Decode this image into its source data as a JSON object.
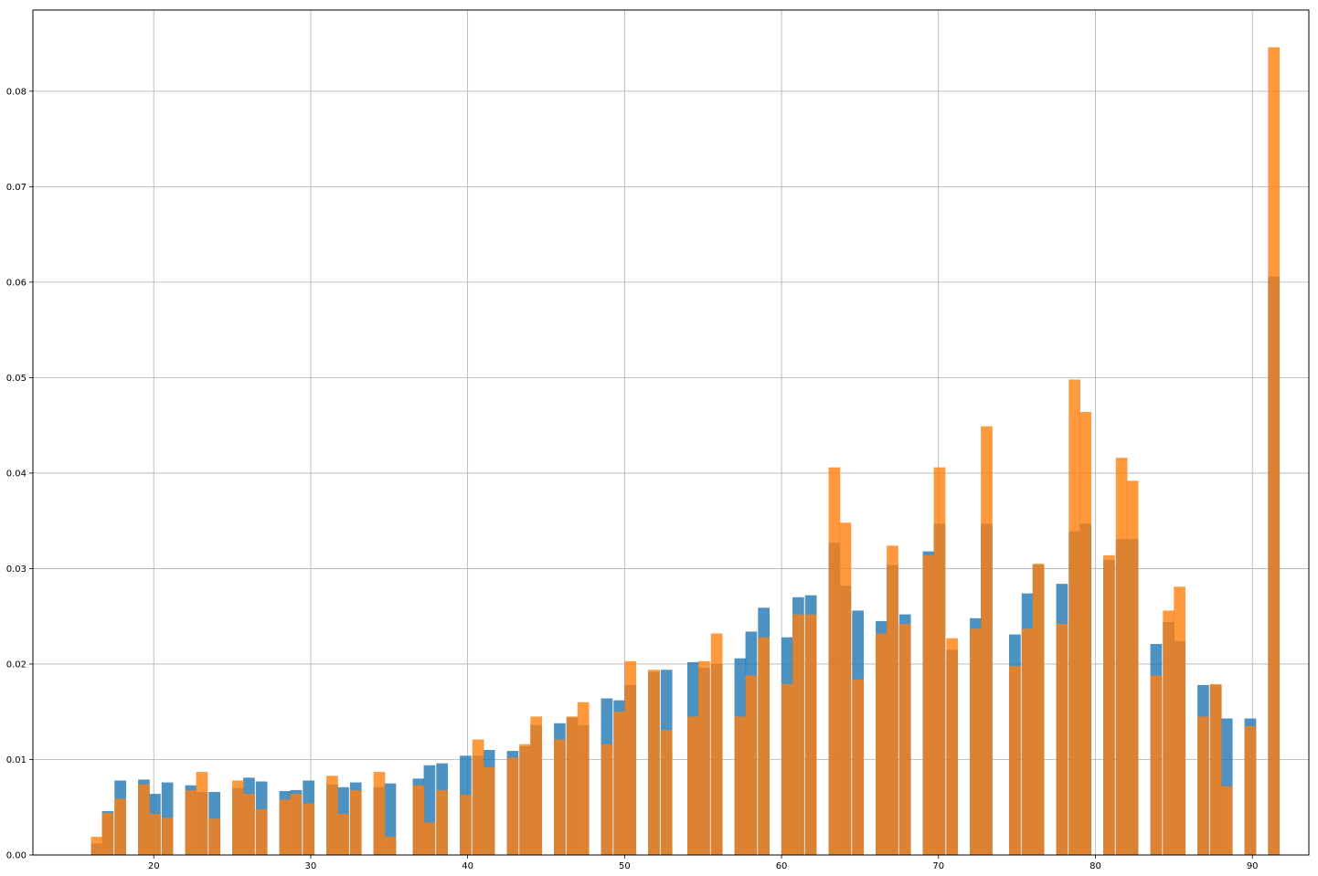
{
  "chart_data": {
    "type": "bar",
    "title": "",
    "xlabel": "",
    "ylabel": "",
    "xlim": [
      12.3,
      93.6
    ],
    "ylim": [
      0,
      0.0885
    ],
    "grid": true,
    "bin_width": 0.74,
    "xticks": [
      20,
      30,
      40,
      50,
      60,
      70,
      80,
      90
    ],
    "yticks": [
      0.0,
      0.01,
      0.02,
      0.03,
      0.04,
      0.05,
      0.06,
      0.07,
      0.08
    ],
    "xtick_labels": [
      "20",
      "30",
      "40",
      "50",
      "60",
      "70",
      "80",
      "90"
    ],
    "ytick_labels": [
      "0.00",
      "0.01",
      "0.02",
      "0.03",
      "0.04",
      "0.05",
      "0.06",
      "0.07",
      "0.08"
    ],
    "series": [
      {
        "color": "#1f77b4",
        "bins": [
          [
            16.0,
            0.0012
          ],
          [
            16.7,
            0.0046
          ],
          [
            17.5,
            0.0078
          ],
          [
            19.0,
            0.0079
          ],
          [
            19.7,
            0.0064
          ],
          [
            20.5,
            0.0076
          ],
          [
            22.0,
            0.0073
          ],
          [
            22.7,
            0.0066
          ],
          [
            23.5,
            0.0066
          ],
          [
            25.0,
            0.007
          ],
          [
            25.7,
            0.0081
          ],
          [
            26.5,
            0.0077
          ],
          [
            28.0,
            0.0067
          ],
          [
            28.7,
            0.0068
          ],
          [
            29.5,
            0.0078
          ],
          [
            31.0,
            0.0074
          ],
          [
            31.7,
            0.0071
          ],
          [
            32.5,
            0.0076
          ],
          [
            34.0,
            0.0071
          ],
          [
            34.7,
            0.0075
          ],
          [
            36.5,
            0.008
          ],
          [
            37.2,
            0.0094
          ],
          [
            38.0,
            0.0096
          ],
          [
            39.5,
            0.0104
          ],
          [
            40.3,
            0.0104
          ],
          [
            41.0,
            0.011
          ],
          [
            42.5,
            0.0109
          ],
          [
            43.3,
            0.0114
          ],
          [
            44.0,
            0.0136
          ],
          [
            45.5,
            0.0138
          ],
          [
            46.3,
            0.0144
          ],
          [
            47.0,
            0.0136
          ],
          [
            48.5,
            0.0164
          ],
          [
            49.3,
            0.0162
          ],
          [
            50.0,
            0.0178
          ],
          [
            51.5,
            0.0192
          ],
          [
            52.3,
            0.0194
          ],
          [
            54.0,
            0.0202
          ],
          [
            54.7,
            0.0196
          ],
          [
            55.5,
            0.02
          ],
          [
            57.0,
            0.0206
          ],
          [
            57.7,
            0.0234
          ],
          [
            58.5,
            0.0259
          ],
          [
            60.0,
            0.0228
          ],
          [
            60.7,
            0.027
          ],
          [
            61.5,
            0.0272
          ],
          [
            63.0,
            0.0327
          ],
          [
            63.7,
            0.0282
          ],
          [
            64.5,
            0.0256
          ],
          [
            66.0,
            0.0245
          ],
          [
            66.7,
            0.0304
          ],
          [
            67.5,
            0.0252
          ],
          [
            69.0,
            0.0318
          ],
          [
            69.7,
            0.0347
          ],
          [
            70.5,
            0.0215
          ],
          [
            72.0,
            0.0248
          ],
          [
            72.7,
            0.0347
          ],
          [
            74.5,
            0.0231
          ],
          [
            75.3,
            0.0274
          ],
          [
            76.0,
            0.0304
          ],
          [
            77.5,
            0.0284
          ],
          [
            78.3,
            0.0339
          ],
          [
            79.0,
            0.0347
          ],
          [
            80.5,
            0.0309
          ],
          [
            81.3,
            0.0331
          ],
          [
            82.0,
            0.0331
          ],
          [
            83.5,
            0.0221
          ],
          [
            84.3,
            0.0244
          ],
          [
            85.0,
            0.0224
          ],
          [
            86.5,
            0.0178
          ],
          [
            87.3,
            0.0178
          ],
          [
            88.0,
            0.0143
          ],
          [
            89.5,
            0.0143
          ],
          [
            91.0,
            0.0606
          ]
        ]
      },
      {
        "color": "#ff7f0e",
        "bins": [
          [
            16.0,
            0.0019
          ],
          [
            16.7,
            0.0044
          ],
          [
            17.5,
            0.0059
          ],
          [
            19.0,
            0.0074
          ],
          [
            19.7,
            0.0043
          ],
          [
            20.5,
            0.0039
          ],
          [
            22.0,
            0.0068
          ],
          [
            22.7,
            0.0087
          ],
          [
            23.5,
            0.0038
          ],
          [
            25.0,
            0.0078
          ],
          [
            25.7,
            0.0064
          ],
          [
            26.5,
            0.0048
          ],
          [
            28.0,
            0.0058
          ],
          [
            28.7,
            0.0064
          ],
          [
            29.5,
            0.0054
          ],
          [
            31.0,
            0.0083
          ],
          [
            31.7,
            0.0043
          ],
          [
            32.5,
            0.0068
          ],
          [
            34.0,
            0.0087
          ],
          [
            34.7,
            0.0019
          ],
          [
            36.5,
            0.0073
          ],
          [
            37.2,
            0.0034
          ],
          [
            38.0,
            0.0068
          ],
          [
            39.5,
            0.0063
          ],
          [
            40.3,
            0.0121
          ],
          [
            41.0,
            0.0092
          ],
          [
            42.5,
            0.0102
          ],
          [
            43.3,
            0.0116
          ],
          [
            44.0,
            0.0145
          ],
          [
            45.5,
            0.0121
          ],
          [
            46.3,
            0.0145
          ],
          [
            47.0,
            0.016
          ],
          [
            48.5,
            0.0116
          ],
          [
            49.3,
            0.015
          ],
          [
            50.0,
            0.0203
          ],
          [
            51.5,
            0.0194
          ],
          [
            52.3,
            0.0131
          ],
          [
            54.0,
            0.0145
          ],
          [
            54.7,
            0.0203
          ],
          [
            55.5,
            0.0232
          ],
          [
            57.0,
            0.0145
          ],
          [
            57.7,
            0.0188
          ],
          [
            58.5,
            0.0228
          ],
          [
            60.0,
            0.0179
          ],
          [
            60.7,
            0.0252
          ],
          [
            61.5,
            0.0252
          ],
          [
            63.0,
            0.0406
          ],
          [
            63.7,
            0.0348
          ],
          [
            64.5,
            0.0184
          ],
          [
            66.0,
            0.0232
          ],
          [
            66.7,
            0.0324
          ],
          [
            67.5,
            0.0242
          ],
          [
            69.0,
            0.0314
          ],
          [
            69.7,
            0.0406
          ],
          [
            70.5,
            0.0227
          ],
          [
            72.0,
            0.0237
          ],
          [
            72.7,
            0.0449
          ],
          [
            74.5,
            0.0198
          ],
          [
            75.3,
            0.0237
          ],
          [
            76.0,
            0.0305
          ],
          [
            77.5,
            0.0242
          ],
          [
            78.3,
            0.0498
          ],
          [
            79.0,
            0.0464
          ],
          [
            80.5,
            0.0314
          ],
          [
            81.3,
            0.0416
          ],
          [
            82.0,
            0.0392
          ],
          [
            83.5,
            0.0188
          ],
          [
            84.3,
            0.0256
          ],
          [
            85.0,
            0.0281
          ],
          [
            86.5,
            0.0145
          ],
          [
            87.3,
            0.0179
          ],
          [
            88.0,
            0.0072
          ],
          [
            89.5,
            0.0135
          ],
          [
            91.0,
            0.0846
          ]
        ]
      }
    ]
  }
}
